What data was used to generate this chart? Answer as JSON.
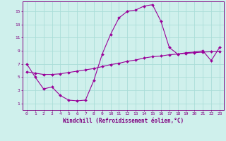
{
  "xlabel": "Windchill (Refroidissement éolien,°C)",
  "x_values": [
    0,
    1,
    2,
    3,
    4,
    5,
    6,
    7,
    8,
    9,
    10,
    11,
    12,
    13,
    14,
    15,
    16,
    17,
    18,
    19,
    20,
    21,
    22,
    23
  ],
  "line1_y": [
    7.0,
    5.0,
    3.2,
    3.5,
    2.2,
    1.5,
    1.4,
    1.5,
    4.5,
    8.5,
    11.5,
    14.0,
    15.0,
    15.2,
    15.8,
    16.0,
    13.5,
    9.5,
    8.5,
    8.7,
    8.8,
    9.0,
    7.5,
    9.5
  ],
  "line2_y": [
    5.8,
    5.6,
    5.4,
    5.4,
    5.5,
    5.7,
    5.9,
    6.1,
    6.3,
    6.6,
    6.9,
    7.1,
    7.4,
    7.6,
    7.9,
    8.1,
    8.2,
    8.4,
    8.5,
    8.6,
    8.7,
    8.8,
    8.85,
    8.9
  ],
  "line_color": "#990099",
  "bg_color": "#cff0ec",
  "grid_color": "#aaddd8",
  "text_color": "#800080",
  "ylim_min": 0,
  "ylim_max": 16,
  "xlim_min": -0.5,
  "xlim_max": 23.5,
  "yticks": [
    1,
    3,
    5,
    7,
    9,
    11,
    13,
    15
  ],
  "xticks": [
    0,
    1,
    2,
    3,
    4,
    5,
    6,
    7,
    8,
    9,
    10,
    11,
    12,
    13,
    14,
    15,
    16,
    17,
    18,
    19,
    20,
    21,
    22,
    23
  ]
}
